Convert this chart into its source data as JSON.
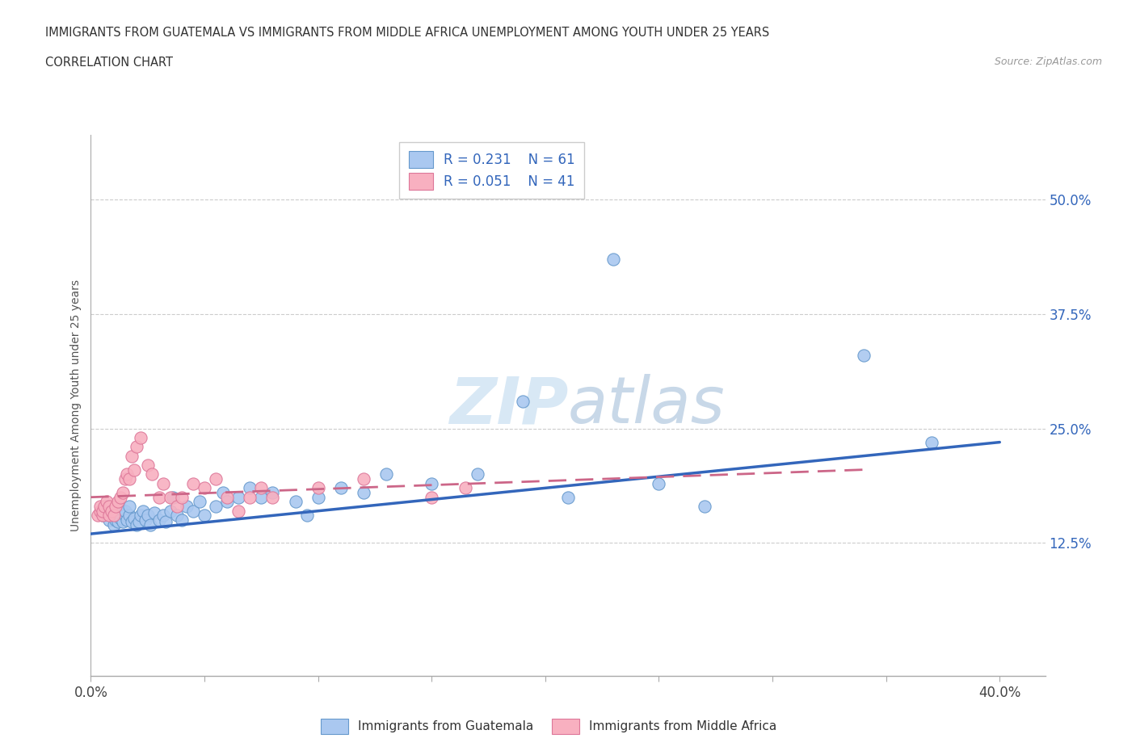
{
  "title_line1": "IMMIGRANTS FROM GUATEMALA VS IMMIGRANTS FROM MIDDLE AFRICA UNEMPLOYMENT AMONG YOUTH UNDER 25 YEARS",
  "title_line2": "CORRELATION CHART",
  "source_text": "Source: ZipAtlas.com",
  "ylabel": "Unemployment Among Youth under 25 years",
  "xlim": [
    0.0,
    0.42
  ],
  "ylim": [
    -0.02,
    0.57
  ],
  "xticks": [
    0.0,
    0.05,
    0.1,
    0.15,
    0.2,
    0.25,
    0.3,
    0.35,
    0.4
  ],
  "xtick_labels": [
    "0.0%",
    "",
    "",
    "",
    "",
    "",
    "",
    "",
    "40.0%"
  ],
  "ytick_positions": [
    0.125,
    0.25,
    0.375,
    0.5
  ],
  "ytick_labels": [
    "12.5%",
    "25.0%",
    "37.5%",
    "50.0%"
  ],
  "R_guatemala": 0.231,
  "N_guatemala": 61,
  "R_middle_africa": 0.051,
  "N_middle_africa": 41,
  "guatemala_color": "#aac8f0",
  "guatemala_edge": "#6699cc",
  "middle_africa_color": "#f8b0c0",
  "middle_africa_edge": "#dd7799",
  "trend_guatemala_color": "#3366bb",
  "trend_middle_africa_color": "#cc6688",
  "watermark_color": "#d8e8f5",
  "legend_label_guatemala": "Immigrants from Guatemala",
  "legend_label_middle_africa": "Immigrants from Middle Africa",
  "guatemala_x": [
    0.005,
    0.005,
    0.007,
    0.008,
    0.009,
    0.01,
    0.01,
    0.011,
    0.012,
    0.012,
    0.013,
    0.013,
    0.014,
    0.015,
    0.015,
    0.016,
    0.017,
    0.017,
    0.018,
    0.019,
    0.02,
    0.021,
    0.022,
    0.023,
    0.024,
    0.025,
    0.026,
    0.028,
    0.03,
    0.032,
    0.033,
    0.035,
    0.036,
    0.038,
    0.04,
    0.042,
    0.045,
    0.048,
    0.05,
    0.055,
    0.058,
    0.06,
    0.065,
    0.07,
    0.075,
    0.08,
    0.09,
    0.095,
    0.1,
    0.11,
    0.12,
    0.13,
    0.15,
    0.17,
    0.19,
    0.21,
    0.23,
    0.25,
    0.27,
    0.34,
    0.37
  ],
  "guatemala_y": [
    0.155,
    0.16,
    0.165,
    0.15,
    0.158,
    0.145,
    0.155,
    0.15,
    0.148,
    0.158,
    0.152,
    0.162,
    0.148,
    0.155,
    0.16,
    0.15,
    0.155,
    0.165,
    0.148,
    0.152,
    0.145,
    0.148,
    0.155,
    0.16,
    0.15,
    0.155,
    0.145,
    0.158,
    0.15,
    0.155,
    0.148,
    0.16,
    0.175,
    0.155,
    0.15,
    0.165,
    0.16,
    0.17,
    0.155,
    0.165,
    0.18,
    0.17,
    0.175,
    0.185,
    0.175,
    0.18,
    0.17,
    0.155,
    0.175,
    0.185,
    0.18,
    0.2,
    0.19,
    0.2,
    0.28,
    0.175,
    0.435,
    0.19,
    0.165,
    0.33,
    0.235
  ],
  "middle_africa_x": [
    0.003,
    0.004,
    0.004,
    0.005,
    0.005,
    0.006,
    0.007,
    0.008,
    0.008,
    0.009,
    0.01,
    0.011,
    0.012,
    0.013,
    0.014,
    0.015,
    0.016,
    0.017,
    0.018,
    0.019,
    0.02,
    0.022,
    0.025,
    0.027,
    0.03,
    0.032,
    0.035,
    0.038,
    0.04,
    0.045,
    0.05,
    0.055,
    0.06,
    0.065,
    0.07,
    0.075,
    0.08,
    0.1,
    0.12,
    0.15,
    0.165
  ],
  "middle_africa_y": [
    0.155,
    0.16,
    0.165,
    0.155,
    0.16,
    0.165,
    0.17,
    0.155,
    0.165,
    0.16,
    0.155,
    0.165,
    0.17,
    0.175,
    0.18,
    0.195,
    0.2,
    0.195,
    0.22,
    0.205,
    0.23,
    0.24,
    0.21,
    0.2,
    0.175,
    0.19,
    0.175,
    0.165,
    0.175,
    0.19,
    0.185,
    0.195,
    0.175,
    0.16,
    0.175,
    0.185,
    0.175,
    0.185,
    0.195,
    0.175,
    0.185
  ],
  "trend_g_x0": 0.0,
  "trend_g_x1": 0.4,
  "trend_g_y0": 0.135,
  "trend_g_y1": 0.235,
  "trend_m_x0": 0.0,
  "trend_m_x1": 0.34,
  "trend_m_y0": 0.175,
  "trend_m_y1": 0.205
}
